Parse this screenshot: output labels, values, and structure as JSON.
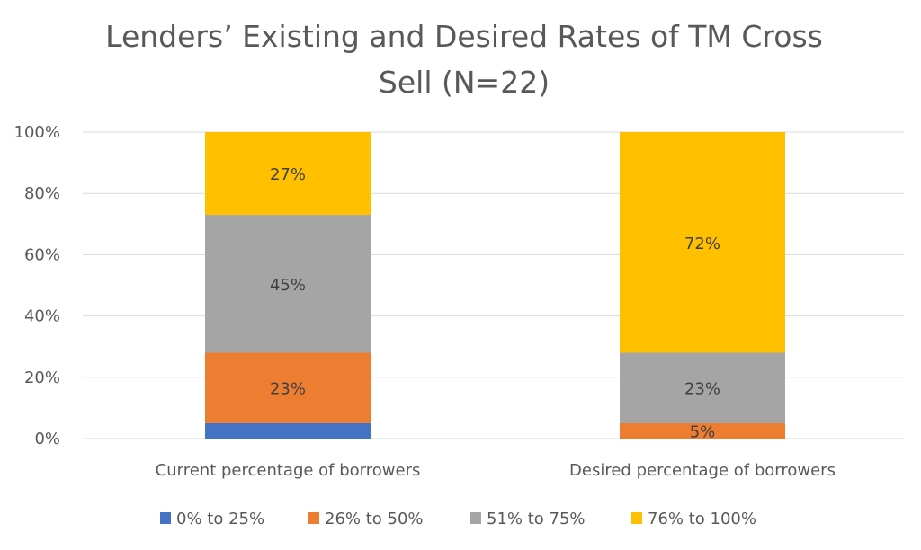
{
  "chart_data": {
    "type": "bar",
    "stacked": true,
    "title_lines": [
      "Lenders’ Existing and Desired Rates of TM Cross",
      "Sell (N=22)"
    ],
    "categories": [
      "Current percentage of borrowers",
      "Desired percentage of borrowers"
    ],
    "ylim": [
      0,
      100
    ],
    "y_ticks": [
      "0%",
      "20%",
      "40%",
      "60%",
      "80%",
      "100%"
    ],
    "y_tick_values": [
      0,
      20,
      40,
      60,
      80,
      100
    ],
    "grid": true,
    "legend_position": "bottom",
    "series": [
      {
        "name": "0% to 25%",
        "color": "#4472C4",
        "values": [
          5,
          0
        ],
        "labels": [
          "",
          ""
        ]
      },
      {
        "name": "26% to 50%",
        "color": "#ED7D31",
        "values": [
          23,
          5
        ],
        "labels": [
          "23%",
          "5%"
        ]
      },
      {
        "name": "51% to 75%",
        "color": "#A5A5A5",
        "values": [
          45,
          23
        ],
        "labels": [
          "45%",
          "23%"
        ]
      },
      {
        "name": "76% to 100%",
        "color": "#FFC000",
        "values": [
          27,
          72
        ],
        "labels": [
          "27%",
          "72%"
        ]
      }
    ]
  }
}
